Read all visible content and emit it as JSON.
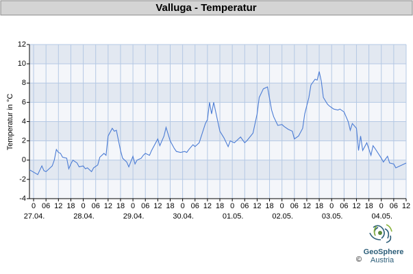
{
  "chart_data": {
    "type": "line",
    "title": "Valluga - Temperatur",
    "ylabel": "Temperatur in °C",
    "xlim": [
      -2,
      180
    ],
    "ylim": [
      -4,
      12
    ],
    "yticks": [
      -4,
      -2,
      0,
      2,
      4,
      6,
      8,
      10,
      12
    ],
    "xticks": [
      0,
      {
        "value": 6,
        "label": "06"
      },
      {
        "value": 12,
        "label": "12"
      },
      {
        "value": 18,
        "label": "18"
      },
      {
        "value": 24,
        "label": "0"
      },
      {
        "value": 30,
        "label": "06"
      },
      {
        "value": 36,
        "label": "12"
      },
      {
        "value": 42,
        "label": "18"
      },
      {
        "value": 48,
        "label": "0"
      },
      {
        "value": 54,
        "label": "06"
      },
      {
        "value": 60,
        "label": "12"
      },
      {
        "value": 66,
        "label": "18"
      },
      {
        "value": 72,
        "label": "0"
      },
      {
        "value": 78,
        "label": "06"
      },
      {
        "value": 84,
        "label": "12"
      },
      {
        "value": 90,
        "label": "18"
      },
      {
        "value": 96,
        "label": "0"
      },
      {
        "value": 102,
        "label": "06"
      },
      {
        "value": 108,
        "label": "12"
      },
      {
        "value": 114,
        "label": "18"
      },
      {
        "value": 120,
        "label": "0"
      },
      {
        "value": 126,
        "label": "06"
      },
      {
        "value": 132,
        "label": "12"
      },
      {
        "value": 138,
        "label": "18"
      },
      {
        "value": 144,
        "label": "0"
      },
      {
        "value": 150,
        "label": "06"
      },
      {
        "value": 156,
        "label": "12"
      },
      {
        "value": 162,
        "label": "18"
      },
      {
        "value": 168,
        "label": "0"
      },
      {
        "value": 174,
        "label": "06"
      },
      {
        "value": 180,
        "label": "12"
      }
    ],
    "date_ticks": [
      {
        "value": 0,
        "label": "27.04."
      },
      {
        "value": 24,
        "label": "28.04."
      },
      {
        "value": 48,
        "label": "29.04."
      },
      {
        "value": 72,
        "label": "30.04."
      },
      {
        "value": 96,
        "label": "01.05."
      },
      {
        "value": 120,
        "label": "02.05."
      },
      {
        "value": 144,
        "label": "03.05."
      },
      {
        "value": 168,
        "label": "04.05."
      }
    ],
    "grid": true,
    "band_colors": [
      "#f4f6fa",
      "#e2e8f1"
    ],
    "x": [
      -2,
      2,
      4,
      5,
      6,
      8,
      9,
      10,
      11,
      12,
      13,
      14,
      16,
      17,
      18,
      19,
      21,
      22,
      24,
      25,
      26,
      28,
      29,
      31,
      32,
      34,
      35,
      36,
      38,
      39,
      40,
      42,
      43,
      45,
      46,
      48,
      49,
      50,
      52,
      53,
      54,
      56,
      57,
      60,
      61,
      63,
      64,
      66,
      68,
      69,
      71,
      73,
      74,
      75,
      77,
      78,
      80,
      83,
      84,
      85,
      86,
      87,
      88,
      90,
      92,
      94,
      95,
      97,
      98,
      100,
      102,
      103,
      106,
      108,
      109,
      111,
      113,
      115,
      116,
      118,
      120,
      121,
      123,
      125,
      126,
      128,
      130,
      131,
      133,
      134,
      136,
      137,
      138,
      139,
      140,
      142,
      143,
      145,
      147,
      148,
      150,
      152,
      153,
      154,
      156,
      157,
      158,
      159,
      161,
      163,
      164,
      165,
      168,
      169,
      171,
      172,
      174,
      175,
      177,
      180
    ],
    "series": [
      {
        "color": "#4a7bd4",
        "values": [
          -1.0,
          -1.5,
          -0.6,
          -1.1,
          -1.2,
          -0.8,
          -0.6,
          0.0,
          1.1,
          0.8,
          0.7,
          0.3,
          0.2,
          -0.9,
          -0.4,
          0.0,
          -0.3,
          -0.7,
          -0.6,
          -0.9,
          -0.8,
          -1.2,
          -0.8,
          -0.5,
          0.3,
          0.7,
          0.5,
          2.5,
          3.3,
          3.0,
          3.1,
          1.0,
          0.2,
          -0.2,
          -0.7,
          0.4,
          -0.4,
          0.0,
          0.2,
          0.5,
          0.7,
          0.5,
          1.0,
          2.2,
          1.5,
          2.5,
          3.4,
          2.0,
          1.2,
          0.9,
          0.8,
          0.9,
          0.8,
          1.1,
          1.6,
          1.4,
          1.8,
          3.8,
          4.2,
          6.0,
          4.8,
          6.0,
          5.0,
          3.0,
          2.3,
          1.4,
          2.0,
          1.8,
          2.0,
          2.4,
          1.8,
          2.0,
          2.8,
          4.8,
          6.5,
          7.4,
          7.6,
          5.2,
          4.5,
          3.6,
          3.7,
          3.5,
          3.2,
          3.0,
          2.2,
          2.5,
          3.3,
          4.8,
          6.5,
          7.8,
          8.4,
          8.3,
          9.2,
          8.2,
          6.5,
          5.8,
          5.6,
          5.3,
          5.2,
          5.3,
          5.0,
          4.0,
          3.1,
          3.8,
          3.3,
          1.0,
          2.5,
          1.0,
          1.8,
          0.5,
          1.5,
          1.2,
          0.2,
          -0.2,
          0.4,
          -0.3,
          -0.4,
          -0.8,
          -0.6,
          -0.3
        ]
      }
    ]
  },
  "logo": {
    "name": "GeoSphere",
    "sub": "Austria",
    "copyright": "©"
  }
}
